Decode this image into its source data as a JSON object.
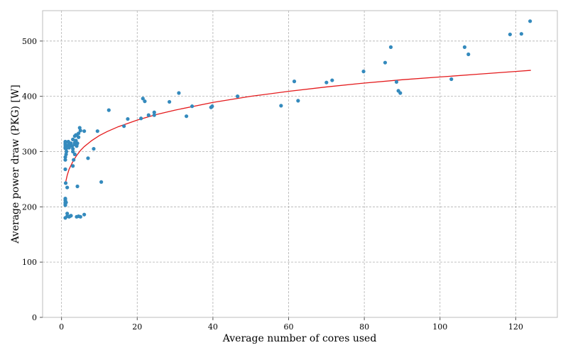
{
  "chart_data": {
    "type": "scatter",
    "title": "",
    "xlabel": "Average number of cores used",
    "ylabel": "Average power draw (PKG) [W]",
    "xlim": [
      -5,
      131
    ],
    "ylim": [
      0,
      555
    ],
    "xticks": [
      0,
      20,
      40,
      60,
      80,
      100,
      120
    ],
    "yticks": [
      0,
      100,
      200,
      300,
      400,
      500
    ],
    "grid": true,
    "legend": "none",
    "colors": {
      "points": "#348abd",
      "fit": "#e41a1c"
    },
    "series": [
      {
        "type": "scatter",
        "x": [
          1.0,
          1.0,
          1.0,
          1.0,
          1.0,
          1.1,
          1.0,
          1.0,
          1.0,
          1.2,
          1.3,
          1.2,
          1.1,
          1.0,
          1.0,
          1.0,
          1.0,
          1.0,
          1.5,
          1.5,
          2.0,
          2.2,
          2.5,
          3.0,
          1.5,
          1.8,
          2.0,
          2.2,
          2.5,
          2.8,
          3.0,
          3.2,
          3.5,
          3.8,
          4.0,
          4.2,
          4.5,
          4.8,
          3.5,
          3.8,
          4.0,
          4.2,
          2.0,
          2.5,
          3.0,
          3.5,
          4.0,
          4.5,
          5.0,
          1.6,
          2.2,
          3.0,
          3.5,
          3.8,
          6.0,
          7.0,
          8.5,
          9.5,
          10.5,
          12.5,
          16.5,
          17.5,
          21.0,
          21.5,
          22.0,
          23.0,
          24.5,
          24.5,
          28.5,
          31.0,
          33.0,
          34.5,
          39.5,
          39.8,
          46.5,
          58.0,
          61.5,
          62.5,
          70.0,
          71.5,
          79.8,
          85.5,
          87.0,
          88.5,
          89.0,
          89.5,
          103.0,
          106.5,
          107.5,
          118.5,
          121.5,
          123.8,
          4.0,
          5.0,
          4.5,
          6.0,
          1.0,
          1.2
        ],
        "y": [
          180,
          205,
          208,
          212,
          215,
          243,
          268,
          285,
          290,
          295,
          300,
          305,
          310,
          312,
          315,
          318,
          308,
          306,
          188,
          183,
          182,
          183,
          184,
          274,
          235,
          318,
          316,
          312,
          314,
          310,
          300,
          285,
          295,
          320,
          312,
          315,
          333,
          343,
          328,
          318,
          330,
          237,
          307,
          315,
          305,
          313,
          310,
          326,
          338,
          311,
          314,
          322,
          316,
          330,
          337,
          288,
          305,
          337,
          245,
          375,
          346,
          359,
          360,
          396,
          391,
          366,
          371,
          366,
          390,
          406,
          364,
          382,
          380,
          382,
          400,
          383,
          427,
          392,
          425,
          429,
          445,
          461,
          489,
          426,
          410,
          406,
          431,
          489,
          476,
          512,
          513,
          536,
          182,
          182,
          183,
          186,
          203,
          208
        ]
      },
      {
        "type": "line",
        "name": "",
        "x": [
          1,
          1.5,
          2,
          3,
          4,
          5,
          6,
          8,
          10,
          12,
          15,
          20,
          25,
          30,
          40,
          50,
          60,
          70,
          80,
          90,
          100,
          110,
          120,
          124
        ],
        "y": [
          242,
          257,
          268,
          282,
          293,
          302,
          309,
          320,
          329,
          336,
          345,
          357,
          367,
          375,
          389,
          400,
          409,
          417,
          424,
          430,
          435,
          440,
          445,
          447
        ]
      }
    ]
  }
}
